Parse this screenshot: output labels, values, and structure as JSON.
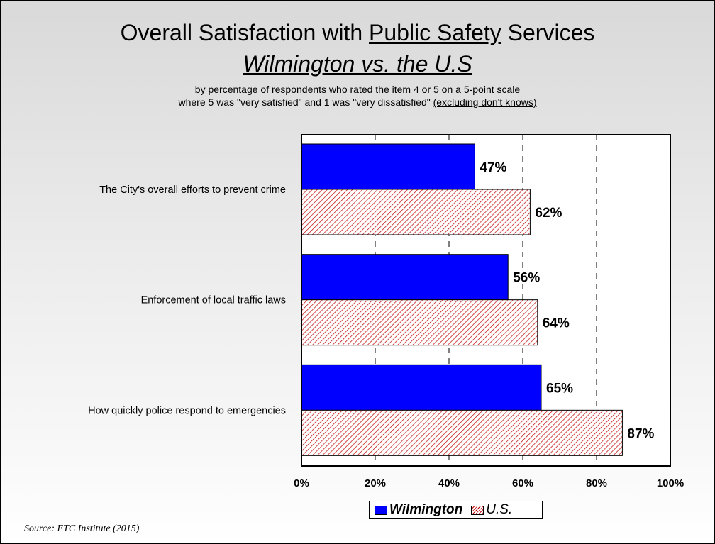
{
  "title": {
    "line1_prefix": "Overall Satisfaction with ",
    "line1_underlined": "Public Safety",
    "line1_suffix": " Services",
    "line2": "Wilmington vs. the U.S"
  },
  "subtitle": {
    "line1": "by percentage of respondents who rated the item 4 or 5 on a 5-point scale",
    "line2_prefix": "where 5 was \"very satisfied\" and 1 was \"very dissatisfied\" ",
    "line2_underlined": "(excluding don't knows)"
  },
  "source": "Source:  ETC Institute (2015)",
  "colors": {
    "wilmington": "#0000ff",
    "us_hatch": "#c00000"
  },
  "chart_data": {
    "type": "bar",
    "orientation": "horizontal",
    "categories": [
      "The City's overall efforts to prevent crime",
      "Enforcement of local traffic laws",
      "How quickly police respond to emergencies"
    ],
    "series": [
      {
        "name": "Wilmington",
        "values": [
          47,
          56,
          65
        ]
      },
      {
        "name": "U.S.",
        "values": [
          62,
          64,
          87
        ]
      }
    ],
    "value_suffix": "%",
    "xlim": [
      0,
      100
    ],
    "xticks": [
      "0%",
      "20%",
      "40%",
      "60%",
      "80%",
      "100%"
    ],
    "grid": "dashed vertical",
    "legend_position": "bottom"
  }
}
